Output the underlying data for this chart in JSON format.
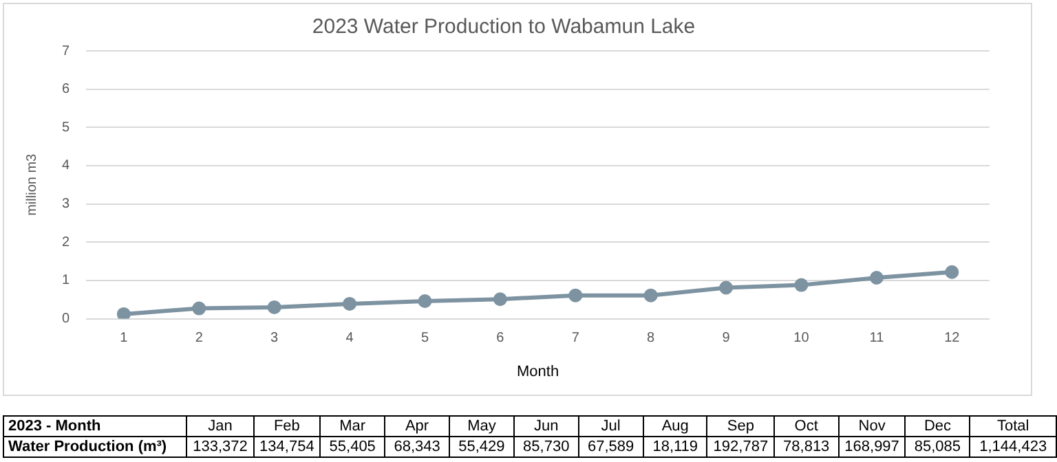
{
  "chart_data": [
    {
      "type": "line",
      "title": "2023 Water Production to Wabamun Lake",
      "xlabel": "Month",
      "ylabel": "million m3",
      "x": [
        1,
        2,
        3,
        4,
        5,
        6,
        7,
        8,
        9,
        10,
        11,
        12
      ],
      "xlim": [
        0.5,
        12.5
      ],
      "xticks": [
        1,
        2,
        3,
        4,
        5,
        6,
        7,
        8,
        9,
        10,
        11,
        12
      ],
      "series": [
        {
          "color": "#7d93a1",
          "values": [
            0.12,
            0.27,
            0.3,
            0.39,
            0.46,
            0.51,
            0.61,
            0.61,
            0.81,
            0.88,
            1.07,
            1.22
          ]
        }
      ],
      "ylim": [
        0,
        7
      ],
      "yticks": [
        0,
        1,
        2,
        3,
        4,
        5,
        6,
        7
      ],
      "grid": "y",
      "marker": "circle",
      "line_style": "solid",
      "legend": false
    },
    {
      "type": "other",
      "title": "2023 - Month",
      "ylabel": "Water Production (m³)",
      "categories": [
        "Jan",
        "Feb",
        "Mar",
        "Apr",
        "May",
        "Jun",
        "Jul",
        "Aug",
        "Sep",
        "Oct",
        "Nov",
        "Dec",
        "Total"
      ],
      "value_labels": [
        "133,372",
        "134,754",
        "55,405",
        "68,343",
        "55,429",
        "85,730",
        "67,589",
        "18,119",
        "192,787",
        "78,813",
        "168,997",
        "85,085",
        "1,144,423"
      ]
    }
  ]
}
